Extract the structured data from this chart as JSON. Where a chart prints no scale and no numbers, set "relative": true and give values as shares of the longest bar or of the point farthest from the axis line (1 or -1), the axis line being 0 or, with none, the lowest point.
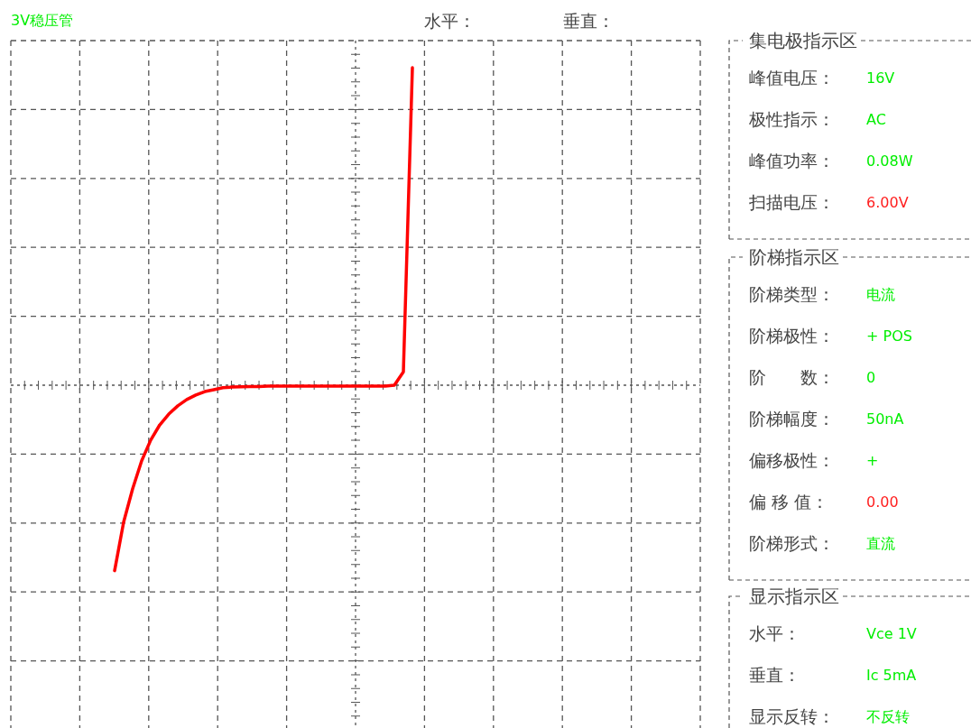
{
  "chart_data": [
    {
      "type": "line",
      "title": "3V稳压管",
      "xlabel": "水平：",
      "ylabel": "垂直：",
      "relative": true,
      "grid": true,
      "categories": [
        null,
        null,
        null,
        null,
        null,
        null,
        null,
        null,
        null,
        null,
        null,
        null,
        null,
        null,
        null,
        null,
        null,
        null,
        null,
        null,
        null,
        null,
        null,
        null,
        null,
        null,
        null,
        null,
        null,
        null,
        null,
        null,
        null,
        null
      ],
      "series": [
        {
          "color": "#ff0000",
          "values": [
            -0.584,
            -0.431,
            -0.326,
            -0.238,
            -0.173,
            -0.125,
            -0.091,
            -0.065,
            -0.045,
            -0.031,
            -0.02,
            -0.014,
            -0.008,
            -0.006,
            -0.005,
            -0.004,
            -0.004,
            -0.003,
            -0.003,
            -0.003,
            -0.003,
            -0.003,
            -0.003,
            -0.003,
            -0.003,
            -0.003,
            -0.003,
            -0.003,
            -0.003,
            -0.003,
            -0.003,
            0,
            0.042,
            1
          ]
        }
      ]
    },
    {
      "type": "other",
      "title": "集电极指示区",
      "annotations": [
        "峰值电压：",
        "16V",
        "极性指示：",
        "AC",
        "峰值功率：",
        "0.08W",
        "扫描电压：",
        "6.00V"
      ],
      "colors": [
        "#444444",
        "#00ee00",
        "#444444",
        "#00ee00",
        "#444444",
        "#00ee00",
        "#444444",
        "#ff2020"
      ]
    },
    {
      "type": "other",
      "title": "阶梯指示区",
      "annotations": [
        "阶梯类型：",
        "电流",
        "阶梯极性：",
        "+ POS",
        "阶　　数：",
        "0",
        "阶梯幅度：",
        "50nA",
        "偏移极性：",
        "+",
        "偏 移 值：",
        "0.00",
        "阶梯形式：",
        "直流"
      ],
      "colors": [
        "#444444",
        "#00ee00",
        "#444444",
        "#00ee00",
        "#444444",
        "#00ee00",
        "#444444",
        "#00ee00",
        "#444444",
        "#00ee00",
        "#444444",
        "#ff2020",
        "#444444",
        "#00ee00"
      ]
    },
    {
      "type": "other",
      "title": "显示指示区",
      "annotations": [
        "水平：",
        "Vce  1V",
        "垂直：",
        "Ic    5mA",
        "显示反转：",
        "不反转"
      ],
      "colors": [
        "#444444",
        "#00ee00",
        "#444444",
        "#00ee00",
        "#444444",
        "#00ee00"
      ]
    }
  ]
}
